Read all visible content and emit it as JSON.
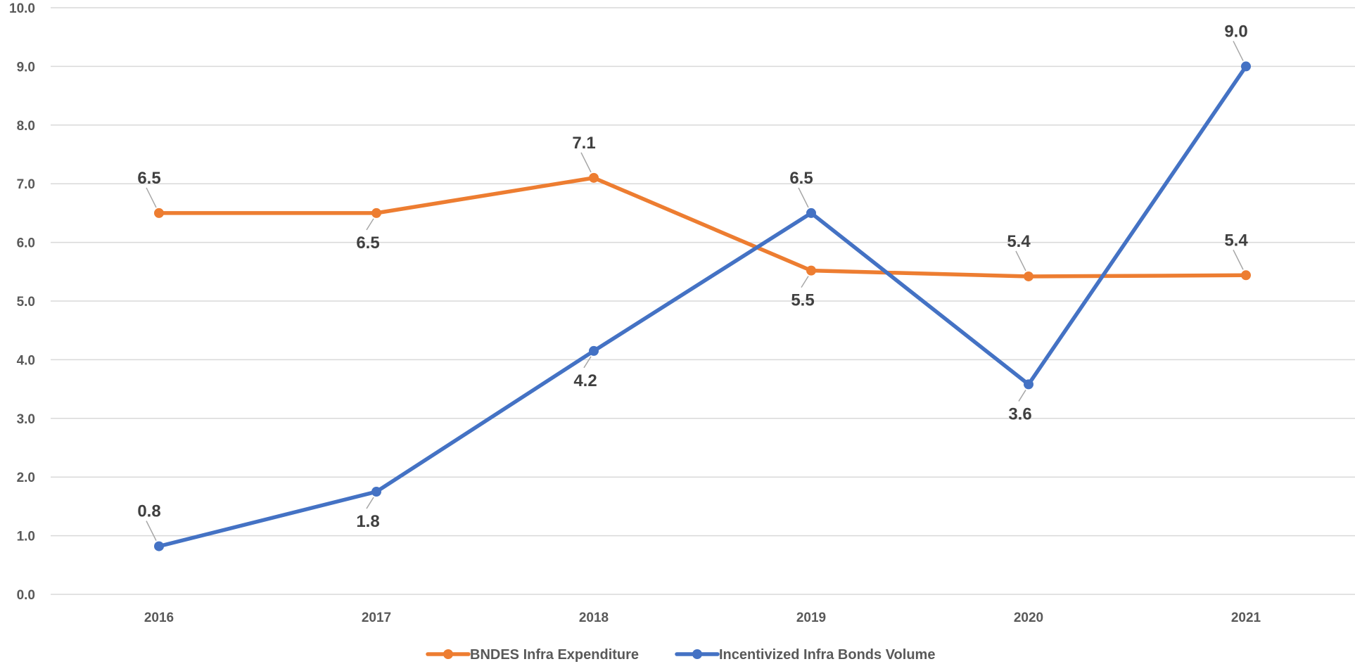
{
  "chart_data": {
    "type": "line",
    "title": "",
    "xlabel": "",
    "ylabel": "",
    "categories": [
      "2016",
      "2017",
      "2018",
      "2019",
      "2020",
      "2021"
    ],
    "ylim": [
      0,
      10
    ],
    "y_ticks": [
      "0.0",
      "1.0",
      "2.0",
      "3.0",
      "4.0",
      "5.0",
      "6.0",
      "7.0",
      "8.0",
      "9.0",
      "10.0"
    ],
    "grid": true,
    "legend_position": "bottom",
    "series": [
      {
        "name": "BNDES Infra Expenditure",
        "color": "#ED7D31",
        "values": [
          6.5,
          6.5,
          7.1,
          5.52,
          5.42,
          5.44
        ],
        "labels": [
          "6.5",
          "6.5",
          "7.1",
          "5.5",
          "5.4",
          "5.4"
        ],
        "label_positions": [
          "above",
          "below",
          "above",
          "below",
          "above",
          "above"
        ]
      },
      {
        "name": "Incentivized Infra Bonds Volume",
        "color": "#4472C4",
        "values": [
          0.82,
          1.75,
          4.15,
          6.5,
          3.58,
          9.0
        ],
        "labels": [
          "0.8",
          "1.8",
          "4.2",
          "6.5",
          "3.6",
          "9.0"
        ],
        "label_positions": [
          "above",
          "below",
          "below",
          "above",
          "below",
          "above"
        ]
      }
    ]
  }
}
